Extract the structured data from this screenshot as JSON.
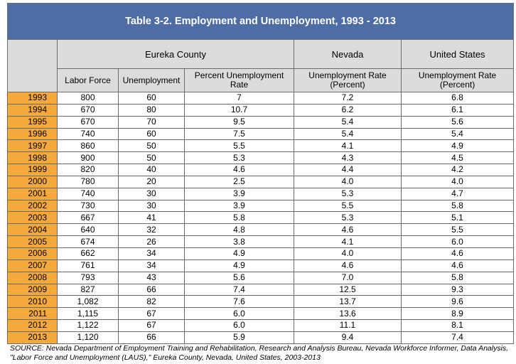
{
  "title": "Table 3-2. Employment and Unemployment, 1993 - 2013",
  "groups": {
    "eureka": "Eureka County",
    "nevada": "Nevada",
    "us": "United States"
  },
  "columns": {
    "labor_force": "Labor Force",
    "unemployment": "Unemployment",
    "pct_unemployment": "Percent Unemployment Rate",
    "nv_rate": "Unemployment Rate (Percent)",
    "us_rate": "Unemployment Rate (Percent)"
  },
  "rows": [
    [
      "1993",
      "800",
      "60",
      "7",
      "7.2",
      "6.8"
    ],
    [
      "1994",
      "670",
      "80",
      "10.7",
      "6.2",
      "6.1"
    ],
    [
      "1995",
      "670",
      "70",
      "9.5",
      "5.4",
      "5.6"
    ],
    [
      "1996",
      "740",
      "60",
      "7.5",
      "5.4",
      "5.4"
    ],
    [
      "1997",
      "860",
      "50",
      "5.5",
      "4.1",
      "4.9"
    ],
    [
      "1998",
      "900",
      "50",
      "5.3",
      "4.3",
      "4.5"
    ],
    [
      "1999",
      "820",
      "40",
      "4.6",
      "4.4",
      "4.2"
    ],
    [
      "2000",
      "780",
      "20",
      "2.5",
      "4.0",
      "4.0"
    ],
    [
      "2001",
      "740",
      "30",
      "3.9",
      "5.3",
      "4.7"
    ],
    [
      "2002",
      "730",
      "30",
      "3.9",
      "5.5",
      "5.8"
    ],
    [
      "2003",
      "667",
      "41",
      "5.8",
      "5.3",
      "5.1"
    ],
    [
      "2004",
      "640",
      "32",
      "4.8",
      "4.6",
      "5.5"
    ],
    [
      "2005",
      "674",
      "26",
      "3.8",
      "4.1",
      "6.0"
    ],
    [
      "2006",
      "662",
      "34",
      "4.9",
      "4.0",
      "4.6"
    ],
    [
      "2007",
      "761",
      "34",
      "4.9",
      "4.6",
      "4.6"
    ],
    [
      "2008",
      "793",
      "43",
      "5.6",
      "7.0",
      "5.8"
    ],
    [
      "2009",
      "827",
      "66",
      "7.4",
      "12.5",
      "9.3"
    ],
    [
      "2010",
      "1,082",
      "82",
      "7.6",
      "13.7",
      "9.6"
    ],
    [
      "2011",
      "1,115",
      "67",
      "6.0",
      "13.6",
      "8.9"
    ],
    [
      "2012",
      "1,122",
      "67",
      "6.0",
      "11.1",
      "8.1"
    ],
    [
      "2013",
      "1,120",
      "66",
      "5.9",
      "9.4",
      "7.4"
    ]
  ],
  "source": "SOURCE: Nevada Department of Employment Training and Rehabilitation, Research and Analysis Bureau, Nevada Workforce Informer, Data Analysis, \"Labor Force and Unemployment (LAUS),\" Eureka County, Nevada, United States, 2003-2013",
  "colors": {
    "title_bg": "#4f6da5",
    "header_bg": "#dcdcdc",
    "year_bg": "#f5a93a"
  }
}
